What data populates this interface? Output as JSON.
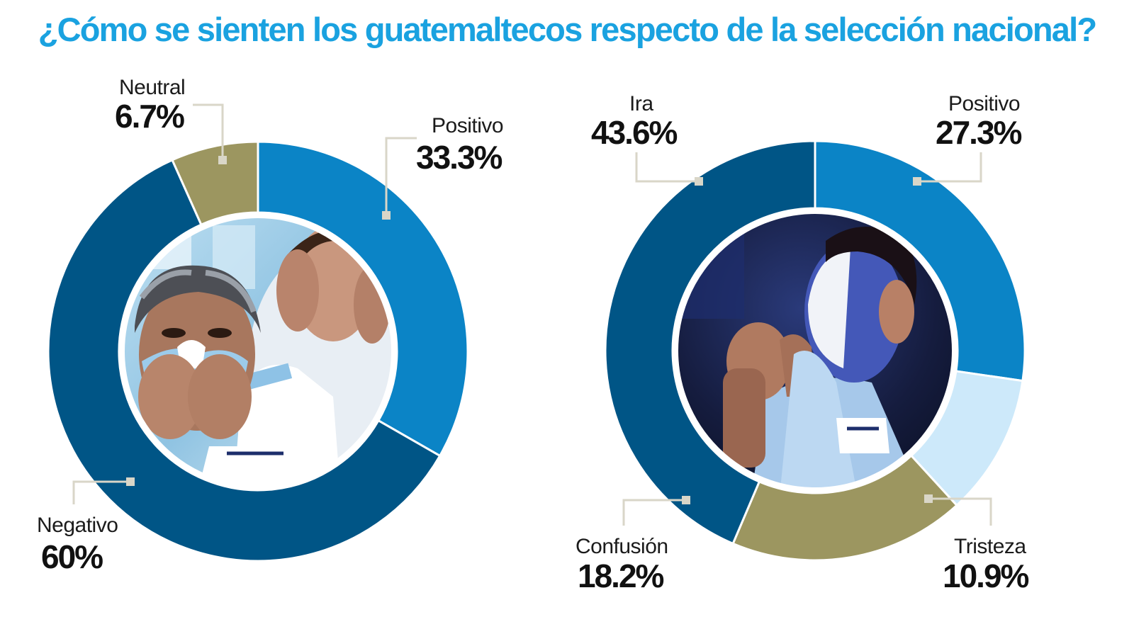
{
  "title": "¿Cómo se sienten los guatemaltecos respecto de la selección nacional?",
  "chart_data": [
    {
      "type": "pie",
      "donut": true,
      "center_image": "photo-fans-covering-faces",
      "slices": [
        {
          "label": "Positivo",
          "display": "33.3%",
          "value": 33.3,
          "color": "#0b84c6"
        },
        {
          "label": "Negativo",
          "display": "60%",
          "value": 60,
          "color": "#005586"
        },
        {
          "label": "Neutral",
          "display": "6.7%",
          "value": 6.7,
          "color": "#9c9660"
        }
      ]
    },
    {
      "type": "pie",
      "donut": true,
      "center_image": "photo-fan-with-painted-face",
      "slices": [
        {
          "label": "Positivo",
          "display": "27.3%",
          "value": 27.3,
          "color": "#0b84c6"
        },
        {
          "label": "Tristeza",
          "display": "10.9%",
          "value": 10.9,
          "color": "#cde9fa"
        },
        {
          "label": "Confusión",
          "display": "18.2%",
          "value": 18.2,
          "color": "#9c9660"
        },
        {
          "label": "Ira",
          "display": "43.6%",
          "value": 43.6,
          "color": "#005586"
        }
      ]
    }
  ]
}
